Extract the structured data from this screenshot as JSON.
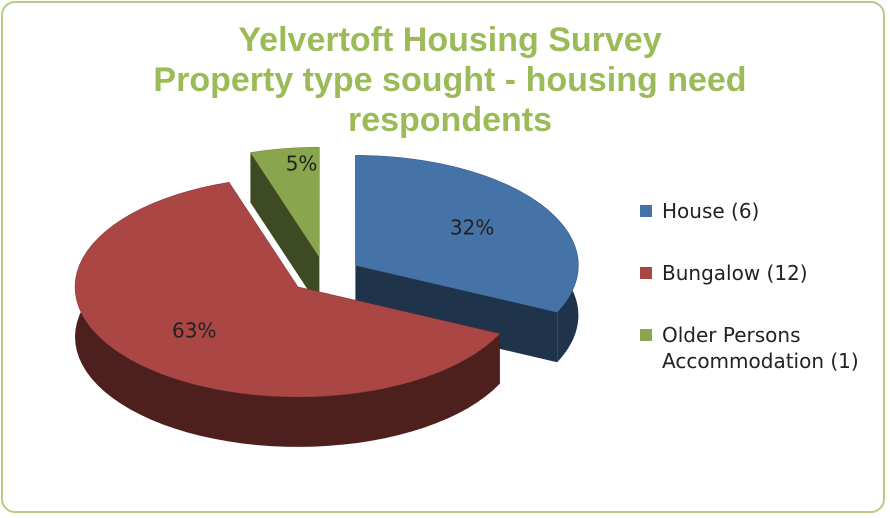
{
  "chart_data": {
    "type": "pie3d",
    "title": [
      "Yelvertoft Housing Survey",
      "Property type sought - housing need respondents"
    ],
    "categories": [
      "House (6)",
      "Bungalow (12)",
      "Older Persons Accommodation (1)"
    ],
    "values": [
      32,
      63,
      5
    ],
    "value_labels": [
      "32%",
      "63%",
      "5%"
    ],
    "colors": [
      "#4572a7",
      "#aa4643",
      "#89a54e"
    ],
    "legend": "right"
  }
}
